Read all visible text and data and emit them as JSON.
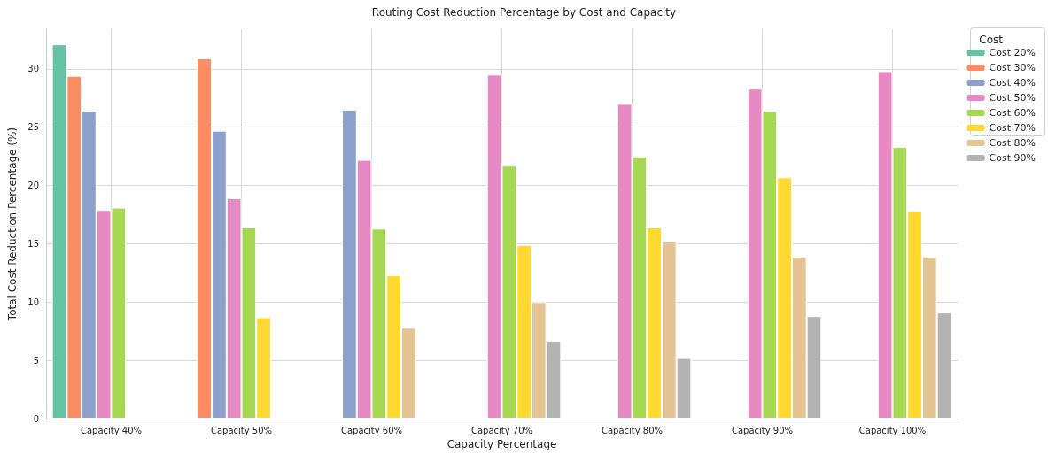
{
  "chart_data": {
    "type": "bar",
    "title": "Routing Cost Reduction Percentage by Cost and Capacity",
    "xlabel": "Capacity Percentage",
    "ylabel": "Total Cost Reduction Percentage (%)",
    "legend_title": "Cost",
    "categories": [
      "Capacity 40%",
      "Capacity 50%",
      "Capacity 60%",
      "Capacity 70%",
      "Capacity 80%",
      "Capacity 90%",
      "Capacity 100%"
    ],
    "series": [
      {
        "name": "Cost 20%",
        "color": "#66c2a5",
        "values": [
          32.1,
          null,
          null,
          null,
          null,
          null,
          null
        ]
      },
      {
        "name": "Cost 30%",
        "color": "#fc8d62",
        "values": [
          29.4,
          30.9,
          null,
          null,
          null,
          null,
          null
        ]
      },
      {
        "name": "Cost 40%",
        "color": "#8da0cb",
        "values": [
          26.4,
          24.7,
          26.5,
          null,
          null,
          null,
          null
        ]
      },
      {
        "name": "Cost 50%",
        "color": "#e78ac3",
        "values": [
          17.9,
          18.9,
          22.2,
          29.5,
          27.0,
          28.3,
          29.8
        ]
      },
      {
        "name": "Cost 60%",
        "color": "#a6d854",
        "values": [
          18.1,
          16.4,
          16.3,
          21.7,
          22.5,
          26.4,
          23.3
        ]
      },
      {
        "name": "Cost 70%",
        "color": "#ffd92f",
        "values": [
          null,
          8.7,
          12.3,
          14.9,
          16.4,
          20.7,
          17.8
        ]
      },
      {
        "name": "Cost 80%",
        "color": "#e5c494",
        "values": [
          null,
          null,
          7.8,
          10.0,
          15.2,
          13.9,
          13.9
        ]
      },
      {
        "name": "Cost 90%",
        "color": "#b3b3b3",
        "values": [
          null,
          null,
          null,
          6.6,
          5.2,
          8.8,
          9.1
        ]
      }
    ],
    "ylim": [
      0,
      33.4
    ],
    "yticks": [
      0,
      5,
      10,
      15,
      20,
      25,
      30
    ],
    "grid": true,
    "legend": "top right"
  }
}
